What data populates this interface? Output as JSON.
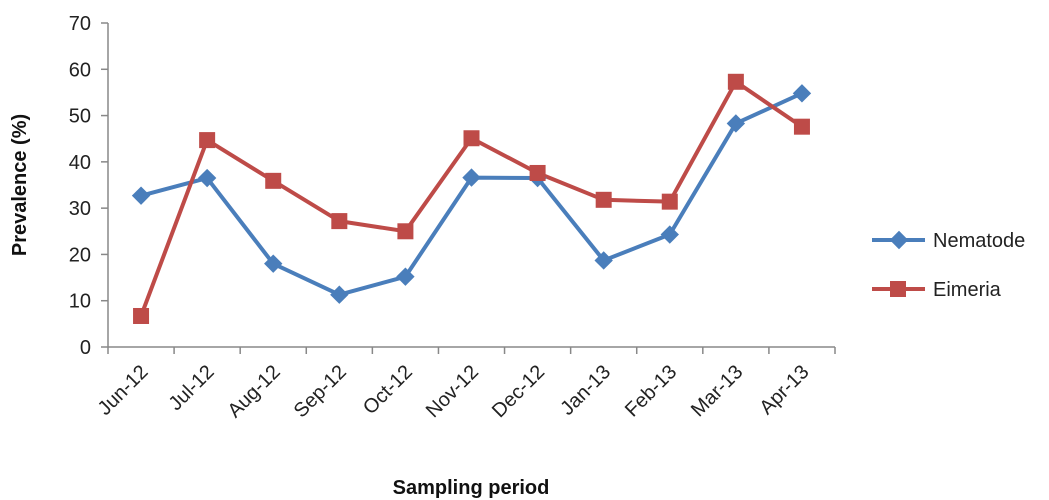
{
  "chart_data": {
    "type": "line",
    "title": "",
    "xlabel": "Sampling period",
    "ylabel": "Prevalence (%)",
    "ylim": [
      0,
      70
    ],
    "y_ticks": [
      0,
      10,
      20,
      30,
      40,
      50,
      60,
      70
    ],
    "y_tick_labels": [
      "0",
      "10",
      "20",
      "30",
      "40",
      "50",
      "60",
      "70"
    ],
    "categories": [
      "Jun-12",
      "Jul-12",
      "Aug-12",
      "Sep-12",
      "Oct-12",
      "Nov-12",
      "Dec-12",
      "Jan-13",
      "Feb-13",
      "Mar-13",
      "Apr-13"
    ],
    "grid": false,
    "legend_position": "right",
    "series": [
      {
        "name": "Nematode",
        "color": "#4A7EBB",
        "marker": "diamond",
        "values": [
          32.7,
          36.5,
          18.0,
          11.3,
          15.2,
          36.6,
          36.5,
          18.7,
          24.3,
          48.3,
          54.8
        ]
      },
      {
        "name": "Eimeria",
        "color": "#BE4B48",
        "marker": "square",
        "values": [
          6.7,
          44.7,
          35.9,
          27.2,
          25.0,
          45.1,
          37.6,
          31.8,
          31.4,
          57.3,
          47.6
        ]
      }
    ]
  }
}
